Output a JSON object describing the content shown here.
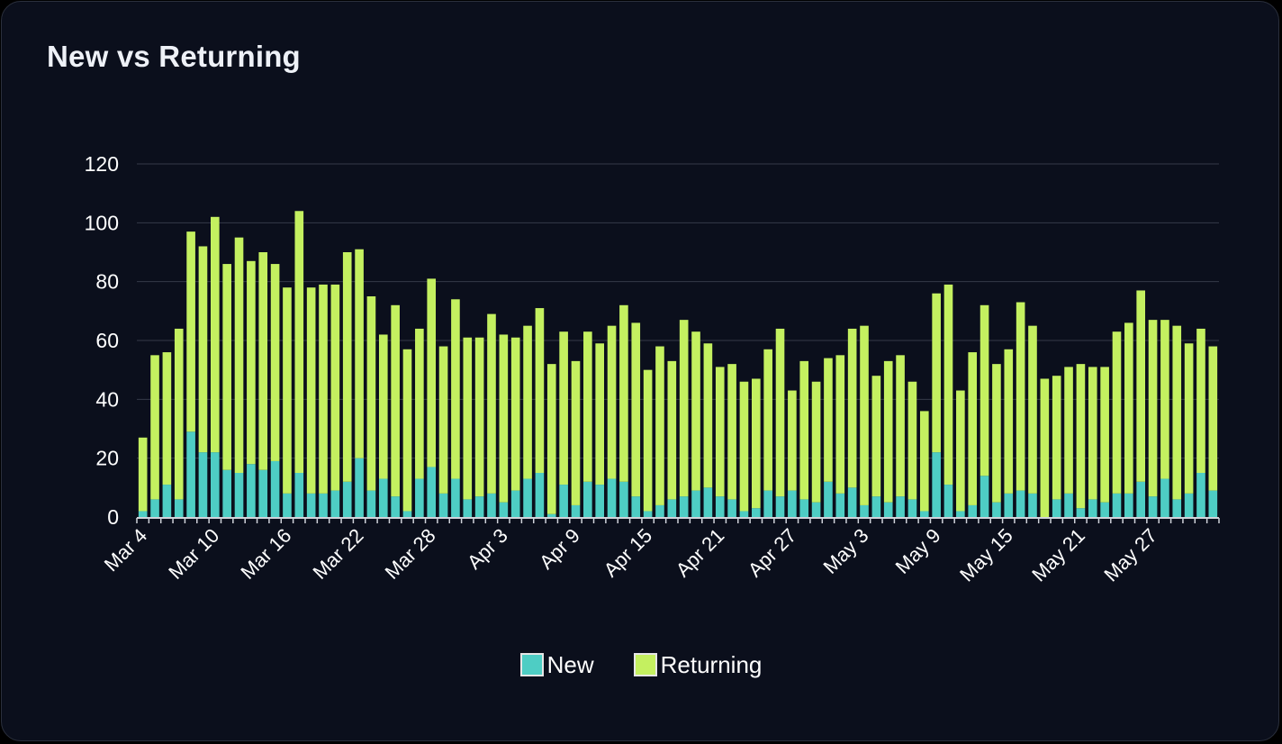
{
  "card": {
    "title": "New vs Returning"
  },
  "colors": {
    "background": "#0b0f1c",
    "grid": "#353a47",
    "axis": "#d0d3da",
    "text": "#ffffff",
    "new": "#4ecdc4",
    "returning": "#c4f060"
  },
  "chart_data": {
    "type": "bar",
    "stacked": true,
    "title": "New vs Returning",
    "xlabel": "",
    "ylabel": "",
    "ylim": [
      0,
      120
    ],
    "yticks": [
      0,
      20,
      40,
      60,
      80,
      100,
      120
    ],
    "x_tick_labels": [
      "Mar 4",
      "Mar 10",
      "Mar 16",
      "Mar 22",
      "Mar 28",
      "Apr 3",
      "Apr 9",
      "Apr 15",
      "Apr 21",
      "Apr 27",
      "May 3",
      "May 9",
      "May 15",
      "May 21",
      "May 27"
    ],
    "x_tick_every": 6,
    "first_date": "Mar 4",
    "grid": true,
    "legend_position": "bottom",
    "series": [
      {
        "name": "New",
        "values": [
          2,
          6,
          11,
          6,
          29,
          22,
          22,
          16,
          15,
          18,
          16,
          19,
          8,
          15,
          8,
          8,
          9,
          12,
          20,
          9,
          13,
          7,
          2,
          13,
          17,
          8,
          13,
          6,
          7,
          8,
          5,
          9,
          13,
          15,
          1,
          11,
          4,
          12,
          11,
          13,
          12,
          7,
          2,
          4,
          6,
          7,
          9,
          10,
          7,
          6,
          2,
          3,
          9,
          7,
          9,
          6,
          5,
          12,
          8,
          10,
          4,
          7,
          5,
          7,
          6,
          2,
          22,
          11,
          2,
          4,
          14,
          5,
          8,
          9,
          8,
          0,
          6,
          8,
          3,
          6,
          5,
          8,
          8,
          12,
          7,
          13,
          6,
          8,
          15,
          9
        ]
      },
      {
        "name": "Returning",
        "values": [
          25,
          49,
          45,
          58,
          68,
          70,
          80,
          70,
          80,
          69,
          74,
          67,
          70,
          89,
          70,
          71,
          70,
          78,
          71,
          66,
          49,
          65,
          55,
          51,
          64,
          50,
          61,
          55,
          54,
          61,
          57,
          52,
          52,
          56,
          51,
          52,
          49,
          51,
          48,
          52,
          60,
          59,
          48,
          54,
          47,
          60,
          54,
          49,
          44,
          46,
          44,
          44,
          48,
          57,
          34,
          47,
          41,
          42,
          47,
          54,
          61,
          41,
          48,
          48,
          40,
          34,
          54,
          68,
          41,
          52,
          58,
          47,
          49,
          64,
          57,
          47,
          42,
          43,
          49,
          45,
          46,
          55,
          58,
          65,
          60,
          54,
          59,
          51,
          49,
          49
        ]
      }
    ]
  },
  "legend": {
    "items": [
      {
        "label": "New"
      },
      {
        "label": "Returning"
      }
    ]
  }
}
